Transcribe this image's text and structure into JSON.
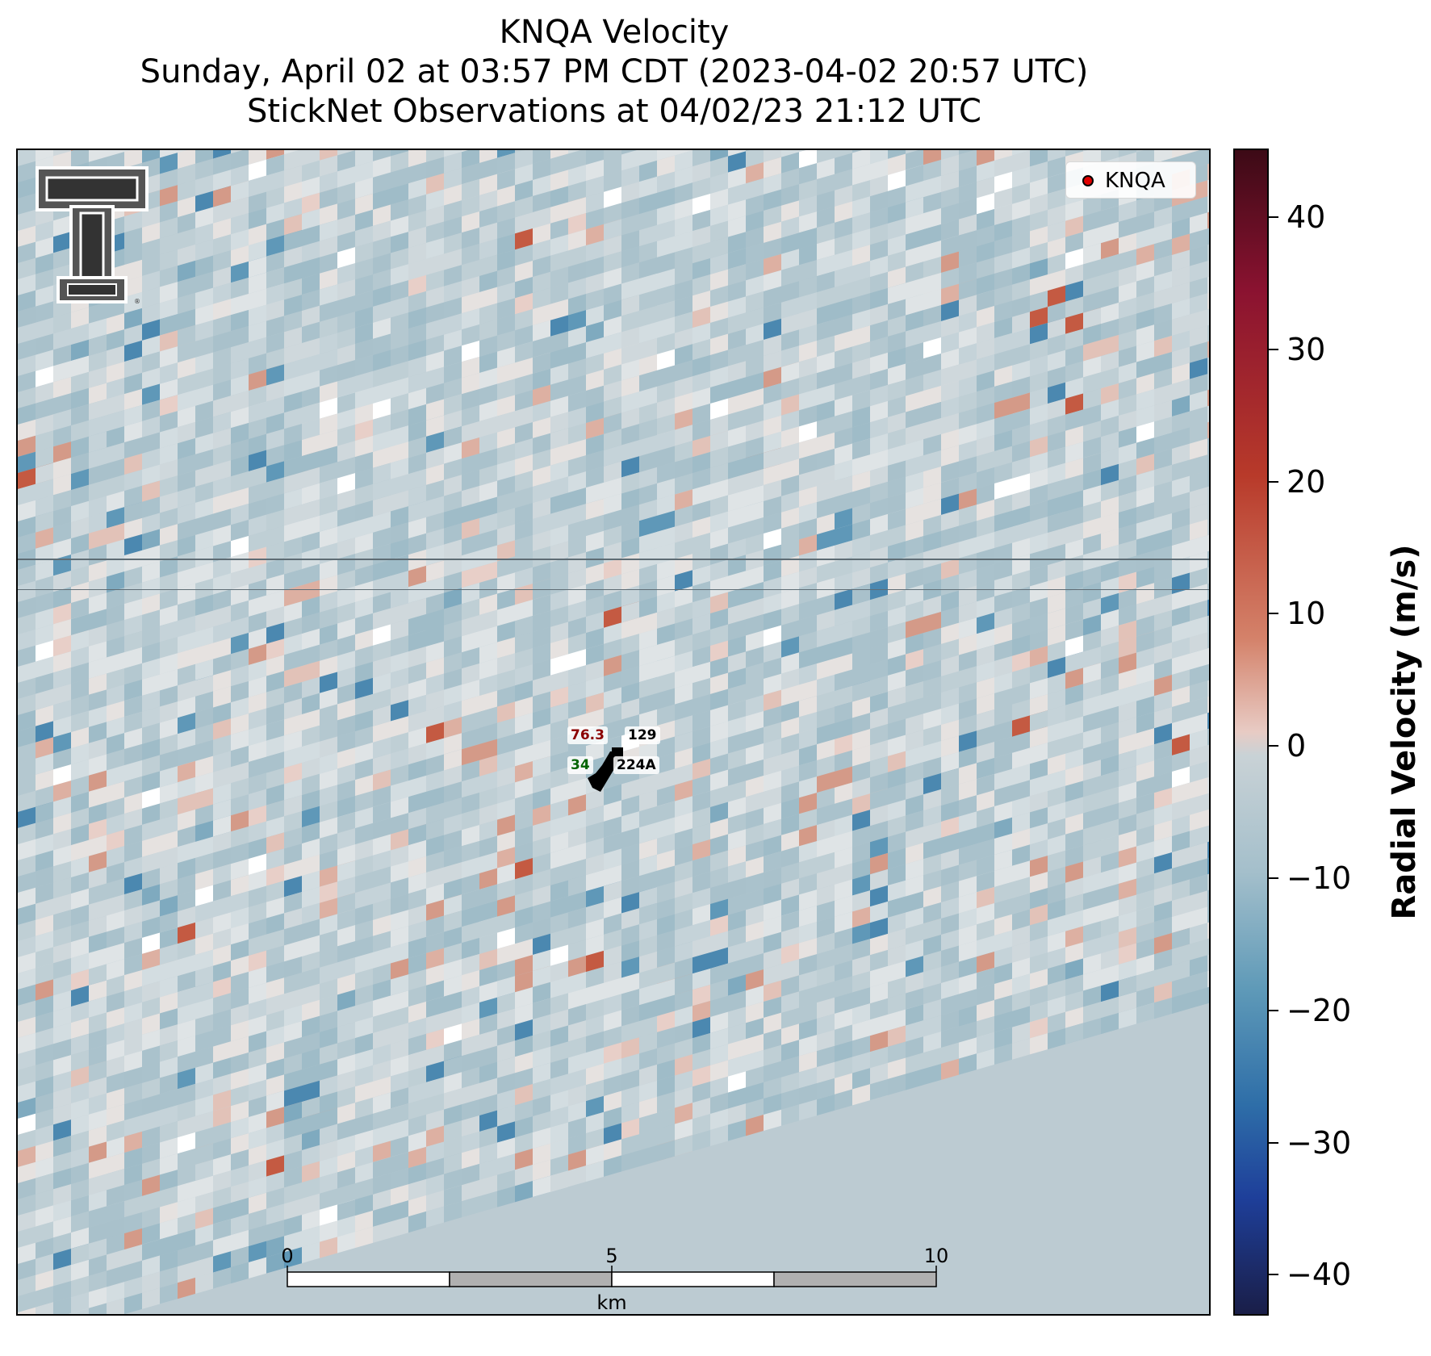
{
  "title": {
    "line1": "KNQA Velocity",
    "line2": "Sunday, April 02 at 03:57 PM CDT (2023-04-02 20:57 UTC)",
    "line3": "StickNet Observations at 04/02/23 21:12 UTC"
  },
  "legend": {
    "label": "KNQA",
    "marker_color": "#e00000"
  },
  "station": {
    "temperature": "76.3",
    "pressure": "129",
    "dewpoint": "34",
    "id": "224A",
    "temperature_color": "#8b0000",
    "dewpoint_color": "#006400"
  },
  "scale_bar": {
    "labels": [
      "0",
      "5",
      "10"
    ],
    "unit": "km"
  },
  "colorbar": {
    "label": "Radial Velocity (m/s)",
    "ticks": [
      "40",
      "30",
      "20",
      "10",
      "0",
      "−10",
      "−20",
      "−30",
      "−40"
    ],
    "range": [
      -45,
      45
    ],
    "colormap": "balance (blue negative, red positive)"
  },
  "logo": {
    "name": "Texas Tech Double T logo",
    "icon": "double-t-icon"
  },
  "map": {
    "background_color": "#bccbd2"
  }
}
